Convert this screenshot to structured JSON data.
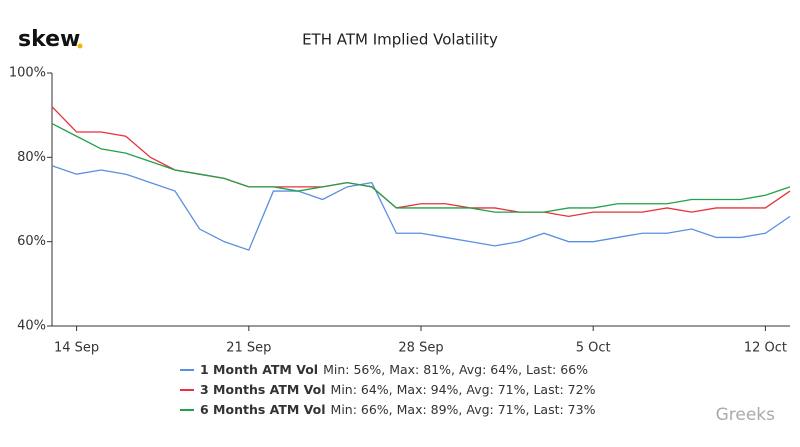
{
  "brand": "skew",
  "watermark": "Greeks",
  "chart_data": {
    "type": "line",
    "title": "ETH ATM Implied Volatility",
    "categories": [
      null,
      "14 Sep",
      null,
      null,
      null,
      null,
      null,
      null,
      "21 Sep",
      null,
      null,
      null,
      null,
      null,
      null,
      "28 Sep",
      null,
      null,
      null,
      null,
      null,
      null,
      "5 Oct",
      null,
      null,
      null,
      null,
      null,
      null,
      "12 Oct",
      null
    ],
    "ylim": [
      40,
      100
    ],
    "yticks": [
      {
        "value": 40,
        "label": "40%"
      },
      {
        "value": 60,
        "label": "60%"
      },
      {
        "value": 80,
        "label": "80%"
      },
      {
        "value": 100,
        "label": "100%"
      }
    ],
    "grid": false,
    "series": [
      {
        "name": "1 Month ATM Vol",
        "summary": "Min: 56%, Max: 81%, Avg: 64%, Last: 66%",
        "color": "#5b8fe0",
        "values": [
          78,
          76,
          77,
          76,
          74,
          72,
          63,
          60,
          58,
          72,
          72,
          70,
          73,
          74,
          62,
          62,
          61,
          60,
          59,
          60,
          62,
          60,
          60,
          61,
          62,
          62,
          63,
          61,
          61,
          62,
          66
        ]
      },
      {
        "name": "3 Months ATM Vol",
        "summary": "Min: 64%, Max: 94%, Avg: 71%, Last: 72%",
        "color": "#e8323c",
        "values": [
          92,
          86,
          86,
          85,
          80,
          77,
          76,
          75,
          73,
          73,
          73,
          73,
          74,
          73,
          68,
          69,
          69,
          68,
          68,
          67,
          67,
          66,
          67,
          67,
          67,
          68,
          67,
          68,
          68,
          68,
          72
        ]
      },
      {
        "name": "6 Months ATM Vol",
        "summary": "Min: 66%, Max: 89%, Avg: 71%, Last: 73%",
        "color": "#22a04b",
        "values": [
          88,
          85,
          82,
          81,
          79,
          77,
          76,
          75,
          73,
          73,
          72,
          73,
          74,
          73,
          68,
          68,
          68,
          68,
          67,
          67,
          67,
          68,
          68,
          69,
          69,
          69,
          70,
          70,
          70,
          71,
          73
        ]
      }
    ]
  }
}
